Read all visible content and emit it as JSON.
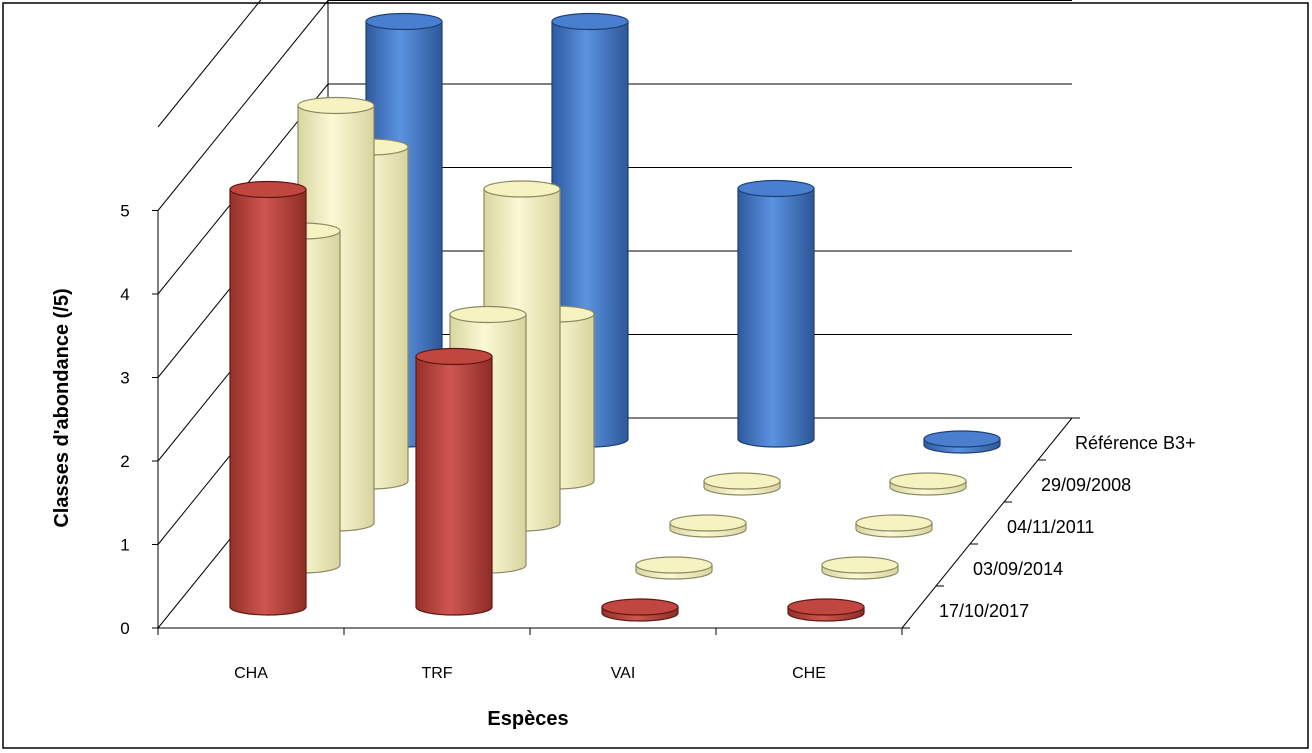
{
  "chart_data": {
    "type": "bar",
    "variant": "3d-cylinder",
    "xlabel": "Espèces",
    "ylabel": "Classes d'abondance  (/5)",
    "ylim": [
      0,
      5
    ],
    "yticks": [
      "0",
      "1",
      "2",
      "3",
      "4",
      "5"
    ],
    "grid": true,
    "categories": [
      "CHA",
      "TRF",
      "VAI",
      "CHE"
    ],
    "series": [
      {
        "name": "Référence B3+",
        "color": "#4a7fd0",
        "values": [
          5,
          5,
          3,
          0
        ]
      },
      {
        "name": "29/09/2008",
        "color": "#f6f3c1",
        "values": [
          4,
          2,
          0,
          0
        ]
      },
      {
        "name": "04/11/2011",
        "color": "#f6f3c1",
        "values": [
          5,
          4,
          0,
          0
        ]
      },
      {
        "name": "03/09/2014",
        "color": "#f6f3c1",
        "values": [
          4,
          3,
          0,
          0
        ]
      },
      {
        "name": "17/10/2017",
        "color": "#c0463f",
        "values": [
          5,
          3,
          0,
          0
        ]
      }
    ]
  }
}
